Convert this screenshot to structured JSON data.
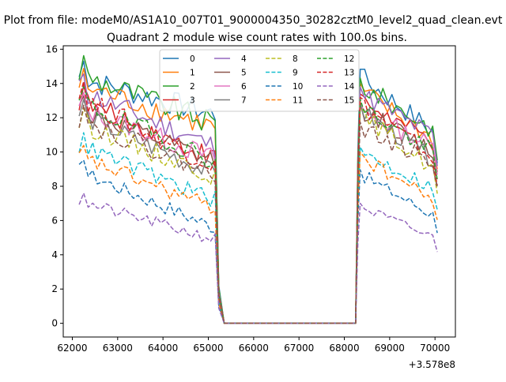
{
  "figure": {
    "suptitle": "Plot from file: modeM0/AS1A10_007T01_9000004350_30282cztM0_level2_quad_clean.evt",
    "offset_text": "+3.578e8"
  },
  "chart_data": {
    "type": "line",
    "title": "Quadrant 2 module wise count rates with 100.0s bins.",
    "xlabel": "",
    "ylabel": "",
    "x_offset": 357800000,
    "xlim": [
      61800,
      70450
    ],
    "ylim": [
      -0.8,
      16.2
    ],
    "x_ticks": [
      62000,
      63000,
      64000,
      65000,
      66000,
      67000,
      68000,
      69000,
      70000
    ],
    "x_tick_labels": [
      "62000",
      "63000",
      "64000",
      "65000",
      "66000",
      "67000",
      "68000",
      "69000",
      "70000"
    ],
    "y_ticks": [
      0,
      2,
      4,
      6,
      8,
      10,
      12,
      14,
      16
    ],
    "y_tick_labels": [
      "0",
      "2",
      "4",
      "6",
      "8",
      "10",
      "12",
      "14",
      "16"
    ],
    "grid": false,
    "legend": {
      "placement": "upper-center",
      "ncol": 4
    },
    "series": [
      {
        "name": "0",
        "color": "#1f77b4",
        "style": "solid",
        "start": 14.3,
        "end": 12.2,
        "rstart": 14.4,
        "rend": 11.0
      },
      {
        "name": "1",
        "color": "#ff7f0e",
        "style": "solid",
        "start": 13.9,
        "end": 11.4,
        "rstart": 13.6,
        "rend": 10.6
      },
      {
        "name": "2",
        "color": "#2ca02c",
        "style": "solid",
        "start": 14.6,
        "end": 11.6,
        "rstart": 13.9,
        "rend": 11.2
      },
      {
        "name": "3",
        "color": "#d62728",
        "style": "solid",
        "start": 13.0,
        "end": 9.6,
        "rstart": 13.0,
        "rend": 10.4
      },
      {
        "name": "4",
        "color": "#9467bd",
        "style": "solid",
        "start": 13.6,
        "end": 10.3,
        "rstart": 13.4,
        "rend": 10.8
      },
      {
        "name": "5",
        "color": "#8c564b",
        "style": "solid",
        "start": 12.4,
        "end": 9.4,
        "rstart": 12.5,
        "rend": 9.9
      },
      {
        "name": "6",
        "color": "#e377c2",
        "style": "solid",
        "start": 12.6,
        "end": 9.6,
        "rstart": 12.4,
        "rend": 10.2
      },
      {
        "name": "7",
        "color": "#7f7f7f",
        "style": "solid",
        "start": 12.2,
        "end": 8.7,
        "rstart": 12.4,
        "rend": 9.4
      },
      {
        "name": "8",
        "color": "#bcbd22",
        "style": "dashed",
        "start": 11.7,
        "end": 8.6,
        "rstart": 12.2,
        "rend": 8.9
      },
      {
        "name": "9",
        "color": "#17becf",
        "style": "dashed",
        "start": 10.4,
        "end": 7.2,
        "rstart": 10.0,
        "rend": 7.8
      },
      {
        "name": "10",
        "color": "#1f77b4",
        "style": "dashed",
        "start": 8.9,
        "end": 5.6,
        "rstart": 8.7,
        "rend": 6.2
      },
      {
        "name": "11",
        "color": "#ff7f0e",
        "style": "dashed",
        "start": 9.7,
        "end": 6.7,
        "rstart": 9.7,
        "rend": 7.1
      },
      {
        "name": "12",
        "color": "#2ca02c",
        "style": "dashed",
        "start": 12.9,
        "end": 9.5,
        "rstart": 12.7,
        "rend": 9.8
      },
      {
        "name": "13",
        "color": "#d62728",
        "style": "dashed",
        "start": 13.2,
        "end": 9.2,
        "rstart": 12.8,
        "rend": 9.5
      },
      {
        "name": "14",
        "color": "#9467bd",
        "style": "dashed",
        "start": 7.1,
        "end": 4.9,
        "rstart": 6.8,
        "rend": 4.9
      },
      {
        "name": "15",
        "color": "#8c564b",
        "style": "dashed",
        "start": 11.9,
        "end": 8.7,
        "rstart": 11.4,
        "rend": 9.3
      }
    ],
    "segments": {
      "first_start": 62150,
      "first_end": 65150,
      "gap_start": 65350,
      "gap_end": 68250,
      "second_start": 68350,
      "second_end": 70050,
      "bin": 100
    }
  }
}
